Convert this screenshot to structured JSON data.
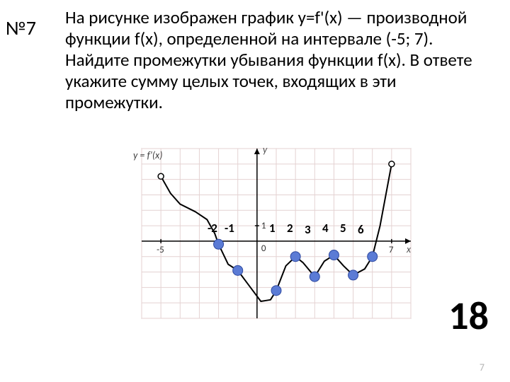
{
  "problem_number": "№7",
  "problem_text": "На рисунке изображен график y=f'(x) — производной функции f(x), определенной на интервале (-5; 7). Найдите промежутки убывания функции f(x). В ответе укажите сумму целых точек, входящих в эти промежутки.",
  "answer": "18",
  "footer_page": "7",
  "chart": {
    "type": "line",
    "x_domain": [
      -6,
      8
    ],
    "y_domain": [
      -5,
      6
    ],
    "grid_step": 1,
    "grid_color": "#e4d2d2",
    "border_color": "#b8a0a0",
    "axis_color": "#000000",
    "background_color": "#ffffff",
    "curve_color": "#000000",
    "curve_width": 2,
    "endpoint_open_fill": "#ffffff",
    "endpoint_open_stroke": "#000000",
    "endpoint_r": 4,
    "axis_label_y": "y",
    "axis_label_x": "x",
    "axis_label_fontsize": 14,
    "axis_label_font": "italic",
    "tick_label_neg5": "-5",
    "tick_label_7": "7",
    "tick_label_1y": "1",
    "tick_label_0": "0",
    "formula_label": "y = f'(x)",
    "highlight_points": [
      {
        "x": -2,
        "y": -0.2
      },
      {
        "x": -1,
        "y": -1.9
      },
      {
        "x": 1,
        "y": -3.2
      },
      {
        "x": 2,
        "y": -1.0
      },
      {
        "x": 3,
        "y": -2.3
      },
      {
        "x": 4,
        "y": -0.9
      },
      {
        "x": 5,
        "y": -2.2
      },
      {
        "x": 6,
        "y": -1.0
      }
    ],
    "highlight_fill": "#5b7bd5",
    "highlight_stroke": "#2f4aa0",
    "highlight_r": 7,
    "curve_points": [
      {
        "x": -5,
        "y": 4.2
      },
      {
        "x": -4.5,
        "y": 3.1
      },
      {
        "x": -4,
        "y": 2.4
      },
      {
        "x": -3.2,
        "y": 1.9
      },
      {
        "x": -2.6,
        "y": 1.4
      },
      {
        "x": -2.2,
        "y": 0.5
      },
      {
        "x": -2,
        "y": -0.2
      },
      {
        "x": -1.5,
        "y": -1.5
      },
      {
        "x": -1,
        "y": -1.9
      },
      {
        "x": -0.4,
        "y": -2.9
      },
      {
        "x": 0.2,
        "y": -3.9
      },
      {
        "x": 0.7,
        "y": -3.8
      },
      {
        "x": 1,
        "y": -3.2
      },
      {
        "x": 1.5,
        "y": -1.6
      },
      {
        "x": 2,
        "y": -1.0
      },
      {
        "x": 2.4,
        "y": -1.4
      },
      {
        "x": 3,
        "y": -2.3
      },
      {
        "x": 3.5,
        "y": -1.3
      },
      {
        "x": 4,
        "y": -0.9
      },
      {
        "x": 4.5,
        "y": -1.6
      },
      {
        "x": 5,
        "y": -2.2
      },
      {
        "x": 5.6,
        "y": -1.8
      },
      {
        "x": 6,
        "y": -1.0
      },
      {
        "x": 6.4,
        "y": 1.0
      },
      {
        "x": 6.7,
        "y": 3.0
      },
      {
        "x": 7,
        "y": 5.0
      }
    ]
  },
  "overlay_labels": {
    "neg2": "-2",
    "neg1": "-1",
    "p1": "1",
    "p2": "2",
    "p3": "3",
    "p4": "4",
    "p5": "5",
    "p6": "6"
  },
  "overlay_fontsize": 17
}
